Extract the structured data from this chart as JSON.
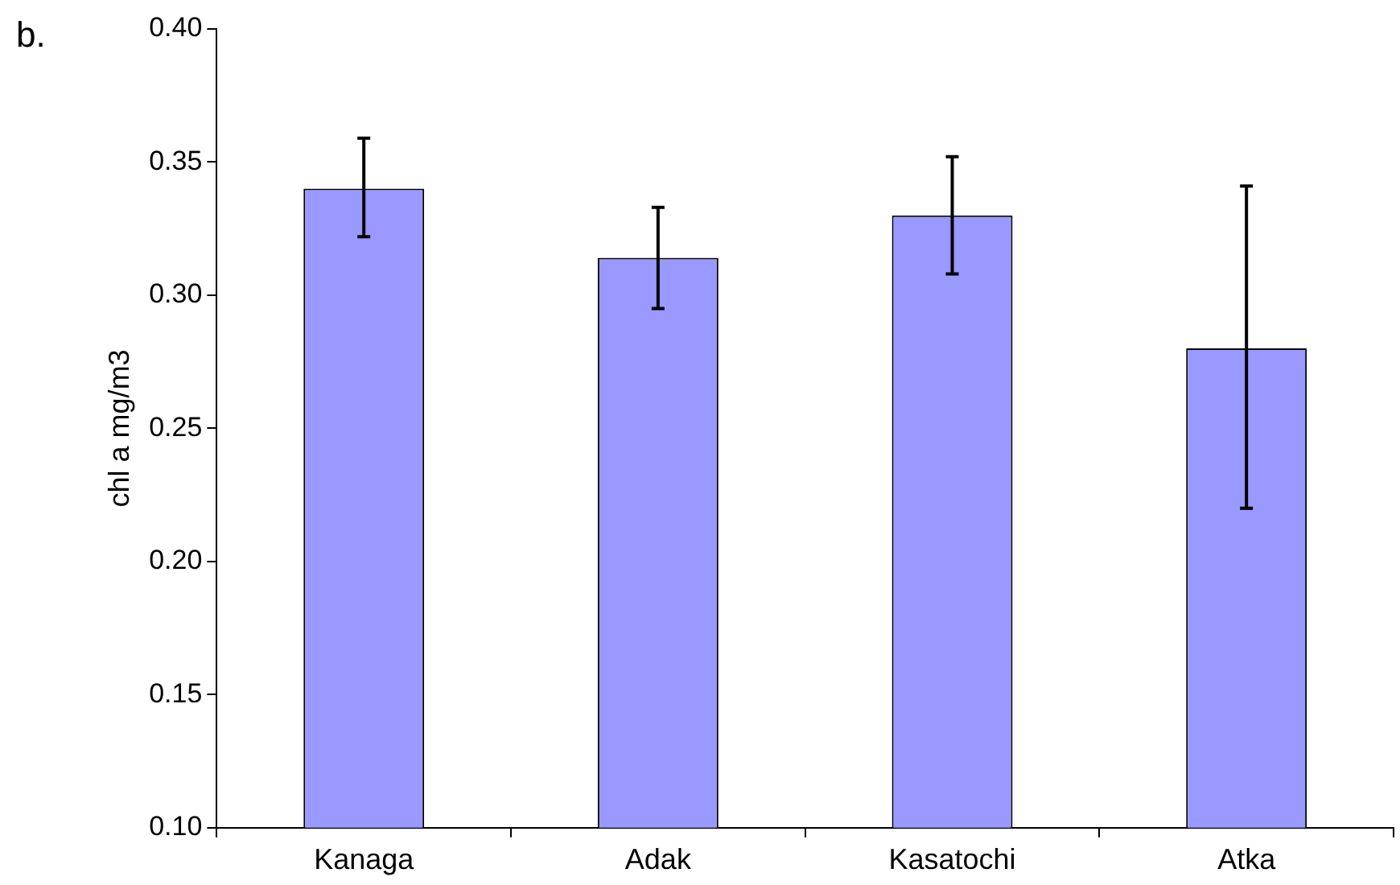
{
  "chart_data": {
    "type": "bar",
    "ylabel": "chl a mg/m3",
    "annotations": [
      "b."
    ],
    "categories": [
      "Kanaga",
      "Adak",
      "Kasatochi",
      "Atka"
    ],
    "values": [
      0.34,
      0.314,
      0.33,
      0.28
    ],
    "errors": [
      [
        0.322,
        0.359
      ],
      [
        0.295,
        0.333
      ],
      [
        0.308,
        0.352
      ],
      [
        0.22,
        0.341
      ]
    ],
    "color": "#9999ff",
    "ylim": [
      0.1,
      0.4
    ],
    "yticks": [
      {
        "value": 0.1,
        "label": "0.10"
      },
      {
        "value": 0.15,
        "label": "0.15"
      },
      {
        "value": 0.2,
        "label": "0.20"
      },
      {
        "value": 0.25,
        "label": "0.25"
      },
      {
        "value": 0.3,
        "label": "0.30"
      },
      {
        "value": 0.35,
        "label": "0.35"
      },
      {
        "value": 0.4,
        "label": "0.40"
      }
    ],
    "grid": false,
    "legend": false
  }
}
